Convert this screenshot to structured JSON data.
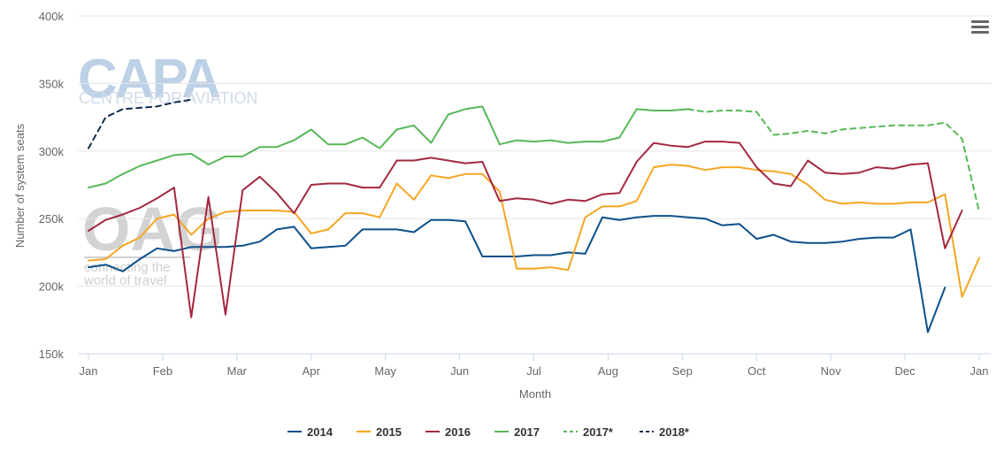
{
  "watermarks": {
    "capa_title": "CAPA",
    "capa_subtitle": "CENTRE FOR AVIATION",
    "oag_title": "OAG",
    "oag_line1": "connecting the",
    "oag_line2": "world of travel"
  },
  "menu_icon": "hamburger-menu-icon",
  "chart_data": {
    "type": "line",
    "title": "",
    "xlabel": "Month",
    "ylabel": "Number of system seats",
    "ylim": [
      150000,
      400000
    ],
    "yticks": [
      150000,
      200000,
      250000,
      300000,
      350000,
      400000
    ],
    "ytick_labels": [
      "150k",
      "200k",
      "250k",
      "300k",
      "350k",
      "400k"
    ],
    "xticks": [
      "Jan",
      "Feb",
      "Mar",
      "Apr",
      "May",
      "Jun",
      "Jul",
      "Aug",
      "Sep",
      "Oct",
      "Nov",
      "Dec",
      "Jan"
    ],
    "x_unit": "week",
    "grid": "horizontal",
    "legend_position": "bottom-center",
    "series": [
      {
        "name": "2014",
        "color": "#0d4f8b",
        "dash": "solid",
        "start_week": 1,
        "values": [
          214000,
          216000,
          211000,
          220000,
          228000,
          226000,
          229000,
          229000,
          229000,
          230000,
          233000,
          242000,
          244000,
          228000,
          229000,
          230000,
          242000,
          242000,
          242000,
          240000,
          249000,
          249000,
          248000,
          222000,
          222000,
          222000,
          223000,
          223000,
          225000,
          224000,
          251000,
          249000,
          251000,
          252000,
          252000,
          251000,
          250000,
          245000,
          246000,
          235000,
          238000,
          233000,
          232000,
          232000,
          233000,
          235000,
          236000,
          236000,
          242000,
          166000,
          199000
        ]
      },
      {
        "name": "2015",
        "color": "#f5a623",
        "dash": "solid",
        "start_week": 1,
        "values": [
          219000,
          220000,
          230000,
          236000,
          250000,
          253000,
          238000,
          250000,
          255000,
          256000,
          256000,
          256000,
          255000,
          239000,
          242000,
          254000,
          254000,
          251000,
          276000,
          264000,
          282000,
          280000,
          283000,
          283000,
          270000,
          213000,
          213000,
          214000,
          212000,
          251000,
          259000,
          259000,
          263000,
          288000,
          290000,
          289000,
          286000,
          288000,
          288000,
          286000,
          285000,
          283000,
          275000,
          264000,
          261000,
          262000,
          261000,
          261000,
          262000,
          262000,
          268000,
          192000,
          221000
        ]
      },
      {
        "name": "2016",
        "color": "#a3283f",
        "dash": "solid",
        "start_week": 1,
        "values": [
          241000,
          249000,
          253000,
          258000,
          265000,
          273000,
          177000,
          266000,
          179000,
          271000,
          281000,
          269000,
          254000,
          275000,
          276000,
          276000,
          273000,
          273000,
          293000,
          293000,
          295000,
          293000,
          291000,
          292000,
          263000,
          265000,
          264000,
          261000,
          264000,
          263000,
          268000,
          269000,
          292000,
          306000,
          304000,
          303000,
          307000,
          307000,
          306000,
          288000,
          276000,
          274000,
          293000,
          284000,
          283000,
          284000,
          288000,
          287000,
          290000,
          291000,
          228000,
          256000
        ]
      },
      {
        "name": "2017",
        "color": "#57b857",
        "dash": "solid",
        "start_week": 1,
        "values": [
          273000,
          276000,
          283000,
          289000,
          293000,
          297000,
          298000,
          290000,
          296000,
          296000,
          303000,
          303000,
          308000,
          316000,
          305000,
          305000,
          310000,
          302000,
          316000,
          319000,
          306000,
          327000,
          331000,
          333000,
          305000,
          308000,
          307000,
          308000,
          306000,
          307000,
          307000,
          310000,
          331000,
          330000,
          330000,
          331000
        ]
      },
      {
        "name": "2017*",
        "color": "#57b857",
        "dash": "dashed",
        "start_week": 36,
        "values": [
          331000,
          329000,
          330000,
          330000,
          329000,
          312000,
          313000,
          315000,
          313000,
          316000,
          317000,
          318000,
          319000,
          319000,
          319000,
          321000,
          309000,
          255000
        ]
      },
      {
        "name": "2018*",
        "color": "#0d2c4f",
        "dash": "dashed",
        "start_week": 1,
        "values": [
          302000,
          325000,
          331000,
          332000,
          333000,
          336000,
          338000
        ]
      }
    ]
  }
}
